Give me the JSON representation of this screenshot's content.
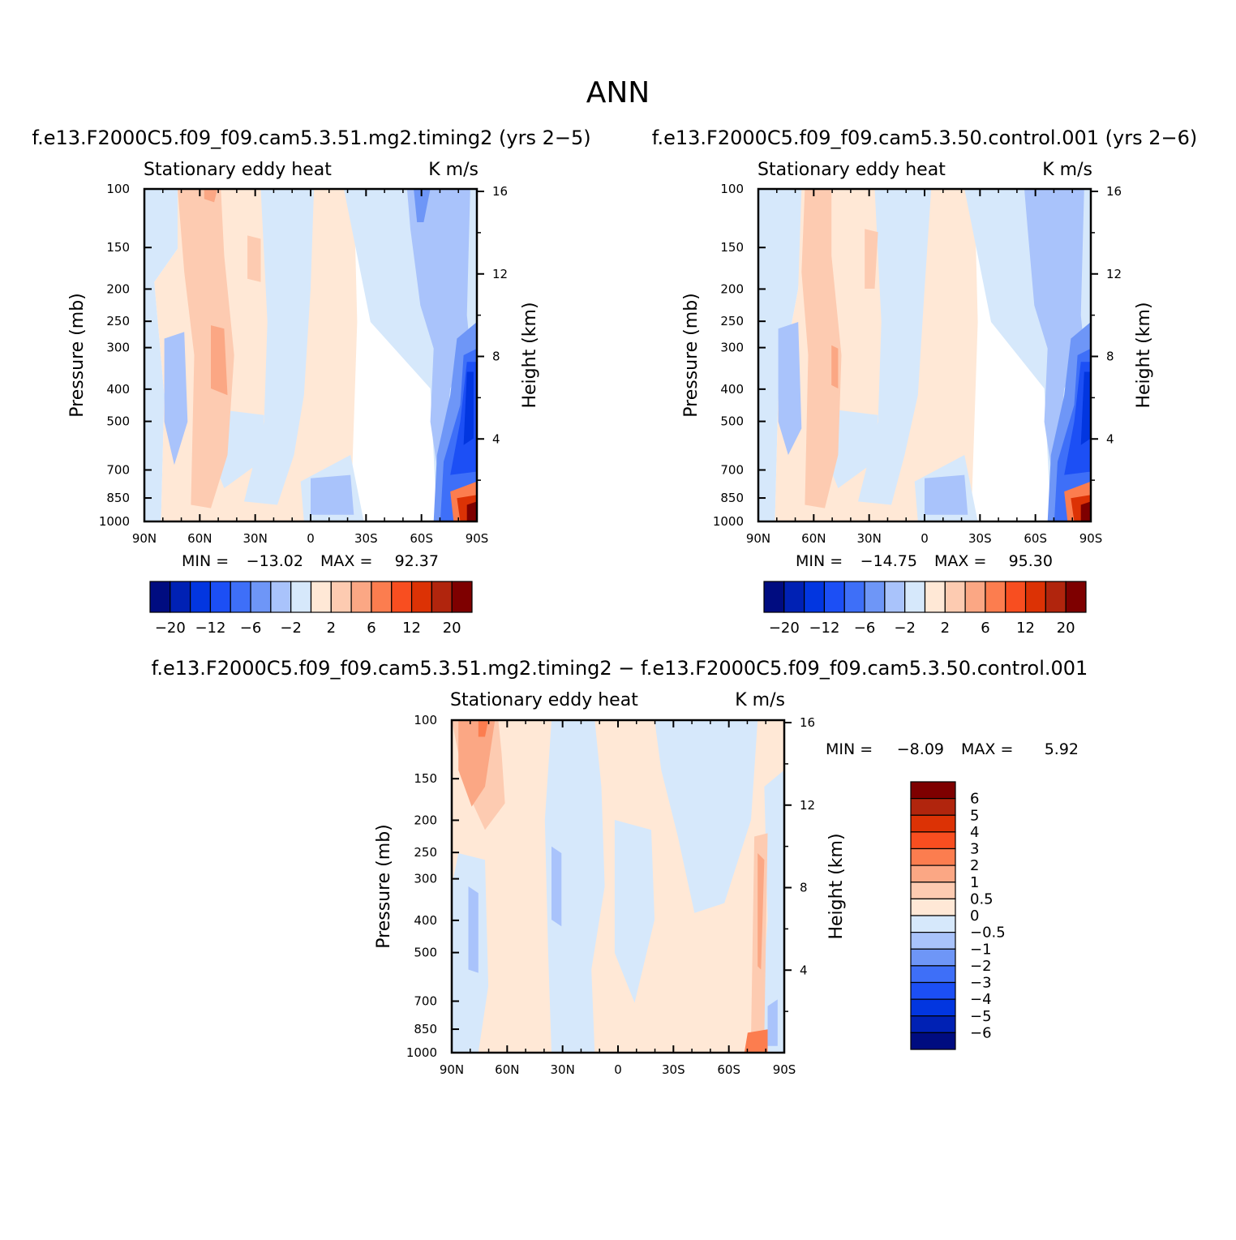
{
  "figure": {
    "title": "ANN"
  },
  "chart_data": [
    {
      "type": "heatmap",
      "case_title": "f.e13.F2000C5.f09_f09.cam5.3.51.mg2.timing2 (yrs 2−5)",
      "variable": "Stationary eddy heat",
      "units": "K m/s",
      "xlabel": "",
      "ylabel": "Pressure (mb)",
      "ylabel_right": "Height (km)",
      "x_ticks": [
        "90N",
        "60N",
        "30N",
        "0",
        "30S",
        "60S",
        "90S"
      ],
      "y_ticks": [
        "100",
        "150",
        "200",
        "250",
        "300",
        "400",
        "500",
        "700",
        "850",
        "1000"
      ],
      "y_ticks_right": [
        "16",
        "12",
        "8",
        "4"
      ],
      "min_label": "MIN =",
      "min_value": "−13.02",
      "max_label": "MAX =",
      "max_value": "92.37",
      "contour_levels": [
        -20,
        -16,
        -12,
        -8,
        -6,
        -4,
        -2,
        -1,
        1,
        2,
        4,
        6,
        8,
        12,
        16,
        20
      ],
      "colorbar_labels": [
        "−20",
        "−12",
        "−6",
        "−2",
        "2",
        "6",
        "12",
        "20"
      ]
    },
    {
      "type": "heatmap",
      "case_title": "f.e13.F2000C5.f09_f09.cam5.3.50.control.001 (yrs 2−6)",
      "variable": "Stationary eddy heat",
      "units": "K m/s",
      "xlabel": "",
      "ylabel": "Pressure (mb)",
      "ylabel_right": "Height (km)",
      "x_ticks": [
        "90N",
        "60N",
        "30N",
        "0",
        "30S",
        "60S",
        "90S"
      ],
      "y_ticks": [
        "100",
        "150",
        "200",
        "250",
        "300",
        "400",
        "500",
        "700",
        "850",
        "1000"
      ],
      "y_ticks_right": [
        "16",
        "12",
        "8",
        "4"
      ],
      "min_label": "MIN =",
      "min_value": "−14.75",
      "max_label": "MAX =",
      "max_value": "95.30",
      "contour_levels": [
        -20,
        -16,
        -12,
        -8,
        -6,
        -4,
        -2,
        -1,
        1,
        2,
        4,
        6,
        8,
        12,
        16,
        20
      ],
      "colorbar_labels": [
        "−20",
        "−12",
        "−6",
        "−2",
        "2",
        "6",
        "12",
        "20"
      ]
    },
    {
      "type": "heatmap",
      "case_title": "f.e13.F2000C5.f09_f09.cam5.3.51.mg2.timing2 − f.e13.F2000C5.f09_f09.cam5.3.50.control.001",
      "variable": "Stationary eddy heat",
      "units": "K m/s",
      "xlabel": "",
      "ylabel": "Pressure (mb)",
      "ylabel_right": "Height (km)",
      "x_ticks": [
        "90N",
        "60N",
        "30N",
        "0",
        "30S",
        "60S",
        "90S"
      ],
      "y_ticks": [
        "100",
        "150",
        "200",
        "250",
        "300",
        "400",
        "500",
        "700",
        "850",
        "1000"
      ],
      "y_ticks_right": [
        "16",
        "12",
        "8",
        "4"
      ],
      "min_label": "MIN =",
      "min_value": "−8.09",
      "max_label": "MAX =",
      "max_value": "5.92",
      "contour_levels": [
        -6,
        -5,
        -4,
        -3,
        -2,
        -1,
        -0.5,
        0,
        0.5,
        1,
        2,
        3,
        4,
        5,
        6
      ],
      "colorbar_labels": [
        "6",
        "5",
        "4",
        "3",
        "2",
        "1",
        "0.5",
        "0",
        "−0.5",
        "−1",
        "−2",
        "−3",
        "−4",
        "−5",
        "−6"
      ]
    }
  ],
  "colors": {
    "palette16": [
      "#000c80",
      "#0021b4",
      "#0236e0",
      "#1c4ff5",
      "#3e6ff8",
      "#6e96f7",
      "#a9c3fb",
      "#d6e8fb",
      "#ffe8d6",
      "#fdcbb1",
      "#fba784",
      "#fc7d4f",
      "#f84e20",
      "#dc3205",
      "#b1250d",
      "#7e0000"
    ]
  }
}
